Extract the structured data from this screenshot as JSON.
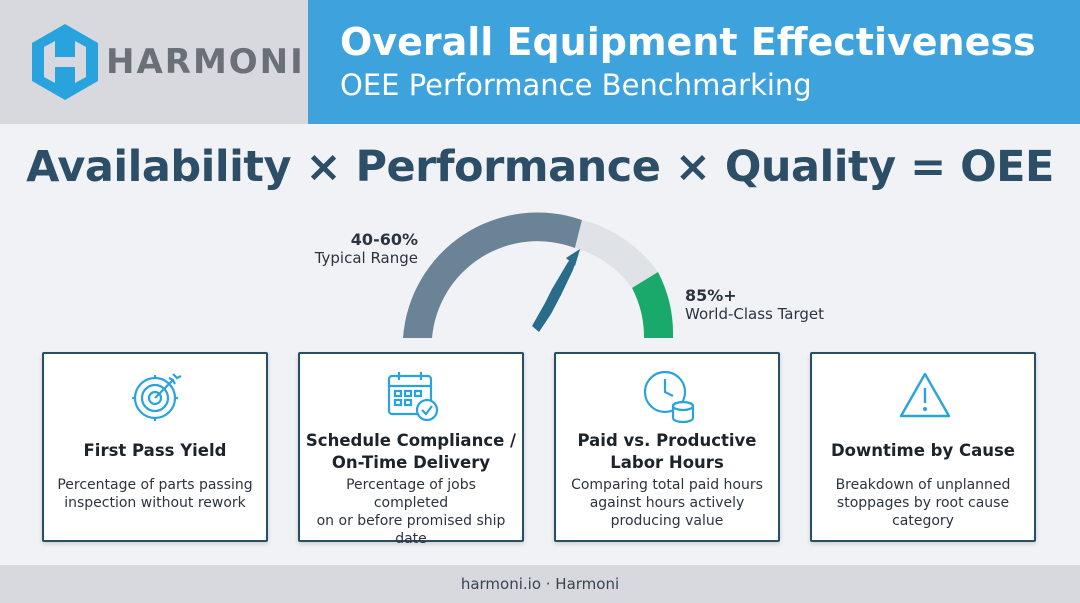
{
  "brand": {
    "name": "HARMONI"
  },
  "header": {
    "title": "Overall Equipment Effectiveness",
    "subtitle": "OEE Performance Benchmarking"
  },
  "formula": "Availability × Performance × Quality = OEE",
  "gauge": {
    "typical": {
      "value": "40-60%",
      "label": "Typical Range"
    },
    "world_class": {
      "value": "85%+",
      "label": "World-Class Target"
    },
    "colors": {
      "typical": "#6b8397",
      "mid": "#dfe3e8",
      "target": "#19a96a",
      "needle": "#2a6d8a"
    }
  },
  "cards": [
    {
      "icon": "target-icon",
      "title_lines": [
        "First Pass Yield"
      ],
      "desc_lines": [
        "Percentage of parts passing",
        "inspection without rework"
      ]
    },
    {
      "icon": "calendar-check-icon",
      "title_lines": [
        "Schedule Compliance /",
        "On-Time Delivery"
      ],
      "desc_lines": [
        "Percentage of jobs completed",
        "on or before promised ship",
        "date"
      ]
    },
    {
      "icon": "clock-coins-icon",
      "title_lines": [
        "Paid vs. Productive",
        "Labor Hours"
      ],
      "desc_lines": [
        "Comparing total paid hours",
        "against hours actively",
        "producing value"
      ]
    },
    {
      "icon": "warning-icon",
      "title_lines": [
        "Downtime by Cause"
      ],
      "desc_lines": [
        "Breakdown of unplanned",
        "stoppages by root cause",
        "category"
      ]
    }
  ],
  "footer": "harmoni.io · Harmoni",
  "colors": {
    "brand_blue": "#3ea3dd",
    "navy": "#2a4d66",
    "icon_blue": "#29a3dd"
  }
}
